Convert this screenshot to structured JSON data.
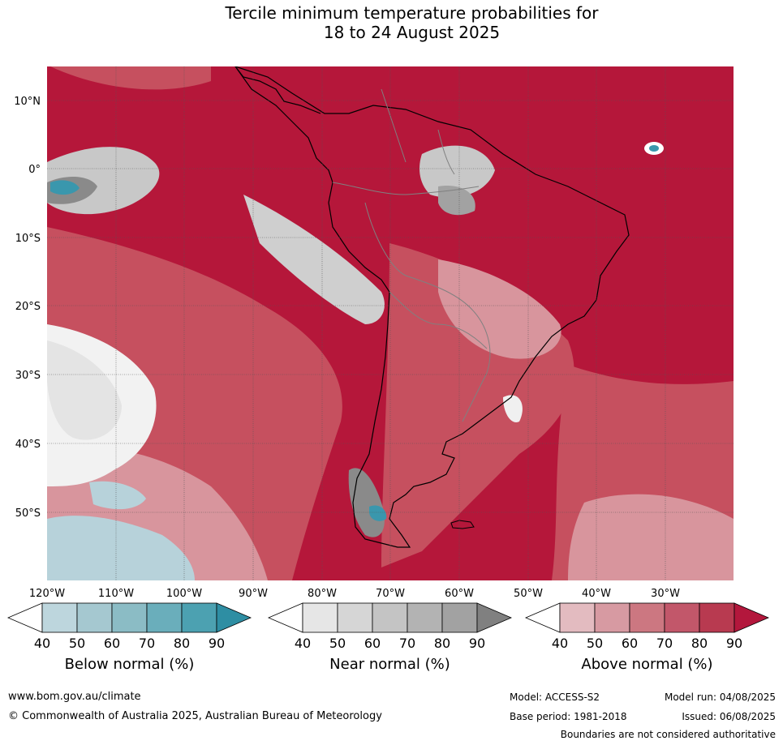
{
  "title": {
    "line1": "Tercile minimum temperature probabilities for",
    "line2": "18 to 24 August 2025"
  },
  "map": {
    "lat_labels": [
      "10°N",
      "0°",
      "10°S",
      "20°S",
      "30°S",
      "40°S",
      "50°S"
    ],
    "lon_labels": [
      "120°W",
      "110°W",
      "100°W",
      "90°W",
      "80°W",
      "70°W",
      "60°W",
      "50°W",
      "40°W",
      "30°W"
    ],
    "colors": {
      "ocean_red": "#b5173a",
      "red_mid": "#c6505f",
      "red_light": "#d8959d",
      "pink": "#e6bcc1",
      "gray_light": "#d4d4d4",
      "gray_dark": "#8a8a8a",
      "teal": "#3a97ad",
      "blue_light": "#b7d2da",
      "coastline": "#000000",
      "border": "#808080"
    }
  },
  "legends": [
    {
      "name": "below",
      "label": "Below normal (%)",
      "ticks": [
        "40",
        "50",
        "60",
        "70",
        "80",
        "90"
      ],
      "colors": [
        "#ffffff",
        "#bdd6dd",
        "#a5c8d0",
        "#8bbcc5",
        "#6aaebb",
        "#4ca1b1",
        "#2e8ea3"
      ]
    },
    {
      "name": "near",
      "label": "Near normal (%)",
      "ticks": [
        "40",
        "50",
        "60",
        "70",
        "80",
        "90"
      ],
      "colors": [
        "#ffffff",
        "#e6e6e6",
        "#d6d6d6",
        "#c4c4c4",
        "#b3b3b3",
        "#a2a2a2",
        "#808080"
      ]
    },
    {
      "name": "above",
      "label": "Above normal (%)",
      "ticks": [
        "40",
        "50",
        "60",
        "70",
        "80",
        "90"
      ],
      "colors": [
        "#ffffff",
        "#e3bbc0",
        "#d79aa2",
        "#cc7781",
        "#c2576a",
        "#b83a50",
        "#b3173c"
      ]
    }
  ],
  "footer": {
    "url": "www.bom.gov.au/climate",
    "copyright": "© Commonwealth of Australia 2025, Australian Bureau of Meteorology",
    "model": "Model: ACCESS-S2",
    "model_run": "Model run: 04/08/2025",
    "base_period": "Base period: 1981-2018",
    "issued": "Issued: 06/08/2025",
    "disclaimer": "Boundaries are not considered authoritative"
  }
}
